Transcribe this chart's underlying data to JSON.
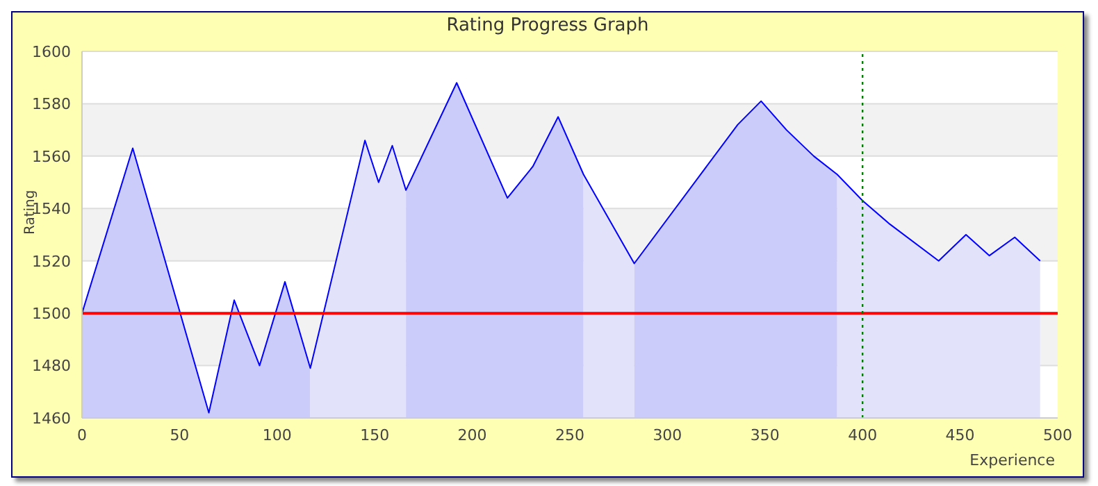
{
  "chart_data": {
    "type": "area",
    "title": "Rating Progress Graph",
    "xlabel": "Experience",
    "ylabel": "Rating",
    "xlim": [
      0,
      500
    ],
    "xticks": [
      0,
      50,
      100,
      150,
      200,
      250,
      300,
      350,
      400,
      450,
      500
    ],
    "ylim": [
      1460,
      1600
    ],
    "yticks": [
      1460,
      1480,
      1500,
      1520,
      1540,
      1560,
      1580,
      1600
    ],
    "grid": "y",
    "legend": false,
    "marker": "none",
    "series": [
      {
        "color": "#ccccfa",
        "x": [
          0,
          26,
          65,
          78,
          91,
          104,
          117
        ],
        "values": [
          1500,
          1563,
          1462,
          1505,
          1480,
          1512,
          1479
        ]
      },
      {
        "color": "#e2e2fa",
        "x": [
          117,
          145,
          152,
          159,
          166
        ],
        "values": [
          1479,
          1566,
          1550,
          1564,
          1547
        ]
      },
      {
        "color": "#ccccfa",
        "x": [
          166,
          192,
          218,
          231,
          244,
          257
        ],
        "values": [
          1547,
          1588,
          1544,
          1556,
          1575,
          1553
        ]
      },
      {
        "color": "#e2e2fa",
        "x": [
          257,
          283
        ],
        "values": [
          1553,
          1519
        ]
      },
      {
        "color": "#ccccfa",
        "x": [
          283,
          336,
          348,
          361,
          375,
          387
        ],
        "values": [
          1519,
          1572,
          1581,
          1570,
          1560,
          1553
        ]
      },
      {
        "color": "#e2e2fa",
        "x": [
          387,
          400,
          414,
          439,
          453,
          465,
          478,
          491
        ],
        "values": [
          1553,
          1543,
          1534,
          1520,
          1530,
          1522,
          1529,
          1520
        ]
      },
      {
        "type": "line",
        "color": "#0000ff",
        "line_style": "solid",
        "x": [
          0,
          26,
          65,
          78,
          91,
          104,
          117,
          145,
          152,
          159,
          166,
          192,
          218,
          231,
          244,
          257,
          283,
          336,
          348,
          361,
          375,
          387,
          400,
          414,
          439,
          453,
          465,
          478,
          491
        ],
        "values": [
          1500,
          1563,
          1462,
          1505,
          1480,
          1512,
          1479,
          1566,
          1550,
          1564,
          1547,
          1588,
          1544,
          1556,
          1575,
          1553,
          1519,
          1572,
          1581,
          1570,
          1560,
          1553,
          1543,
          1534,
          1520,
          1530,
          1522,
          1529,
          1520
        ]
      }
    ],
    "ref_lines": [
      {
        "axis": "y",
        "value": 1500,
        "color": "#ff0000",
        "line_style": "solid"
      },
      {
        "axis": "x",
        "value": 400,
        "color": "#008000",
        "line_style": "dotted"
      }
    ]
  }
}
